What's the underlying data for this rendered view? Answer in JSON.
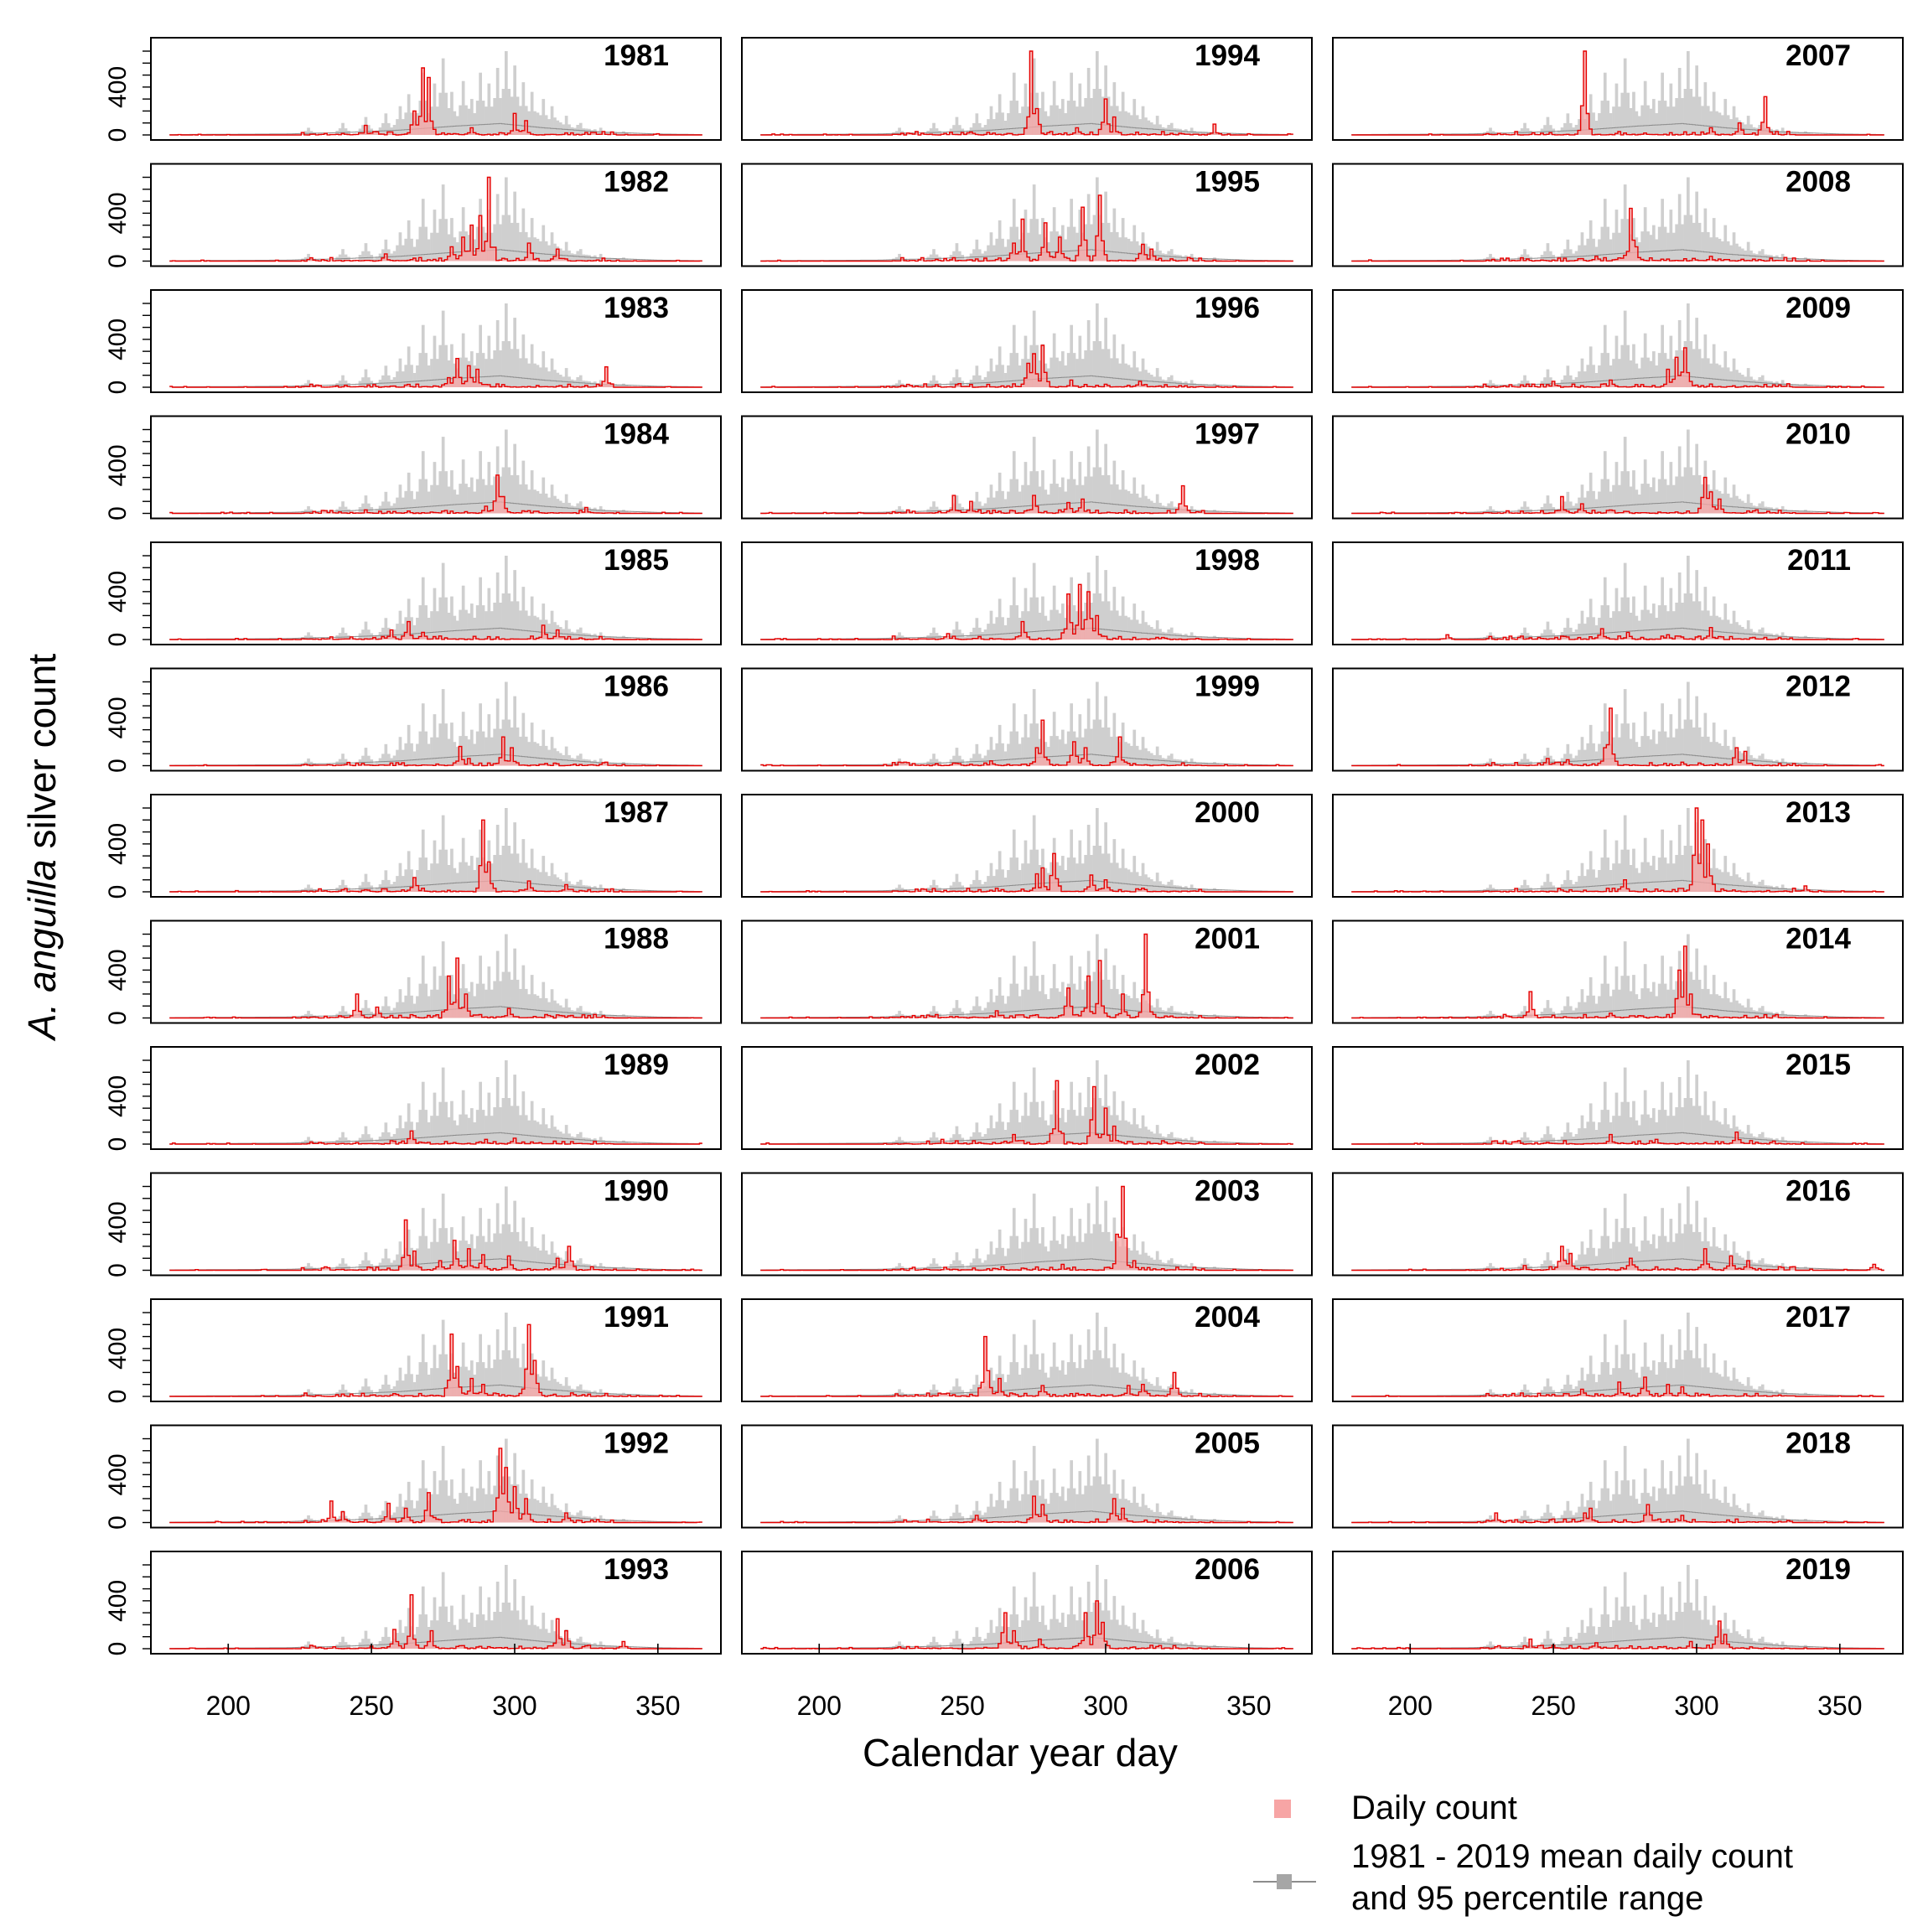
{
  "chart_data": {
    "type": "bar",
    "title": "",
    "xlabel": "Calendar year day",
    "ylabel_italic": "A. anguilla",
    "ylabel_rest": " silver count",
    "xlim": [
      173,
      372
    ],
    "ylim": [
      0,
      700
    ],
    "xticks": [
      200,
      250,
      300,
      350
    ],
    "yticks": [
      0,
      400
    ],
    "years": [
      [
        "1981",
        "1994",
        "2007"
      ],
      [
        "1982",
        "1995",
        "2008"
      ],
      [
        "1983",
        "1996",
        "2009"
      ],
      [
        "1984",
        "1997",
        "2010"
      ],
      [
        "1985",
        "1998",
        "2011"
      ],
      [
        "1986",
        "1999",
        "2012"
      ],
      [
        "1987",
        "2000",
        "2013"
      ],
      [
        "1988",
        "2001",
        "2014"
      ],
      [
        "1989",
        "2002",
        "2015"
      ],
      [
        "1990",
        "2003",
        "2016"
      ],
      [
        "1991",
        "2004",
        "2017"
      ],
      [
        "1992",
        "2005",
        "2018"
      ],
      [
        "1993",
        "2006",
        "2019"
      ]
    ],
    "reference_percentile_peaks": {
      "day": [
        228,
        240,
        248,
        255,
        260,
        263,
        268,
        272,
        275,
        278,
        282,
        285,
        288,
        291,
        294,
        297,
        300,
        303,
        306,
        310,
        313,
        318,
        323,
        330,
        338
      ],
      "upper": [
        60,
        100,
        150,
        180,
        240,
        340,
        520,
        430,
        640,
        360,
        450,
        300,
        520,
        430,
        560,
        700,
        580,
        440,
        360,
        300,
        240,
        160,
        100,
        60,
        30
      ]
    },
    "reference_mean": {
      "day": [
        180,
        220,
        240,
        260,
        280,
        295,
        310,
        330,
        350,
        365
      ],
      "value": [
        3,
        8,
        20,
        40,
        75,
        95,
        60,
        25,
        8,
        3
      ]
    },
    "daily_count_peaks": {
      "1981": [
        [
          268,
          560
        ],
        [
          270,
          480
        ],
        [
          265,
          200
        ],
        [
          300,
          180
        ],
        [
          304,
          120
        ],
        [
          248,
          80
        ],
        [
          285,
          60
        ]
      ],
      "1982": [
        [
          291,
          700
        ],
        [
          288,
          380
        ],
        [
          285,
          300
        ],
        [
          282,
          200
        ],
        [
          278,
          120
        ],
        [
          305,
          150
        ],
        [
          315,
          100
        ],
        [
          255,
          60
        ]
      ],
      "1983": [
        [
          280,
          240
        ],
        [
          284,
          180
        ],
        [
          287,
          150
        ],
        [
          332,
          170
        ],
        [
          277,
          80
        ]
      ],
      "1984": [
        [
          294,
          320
        ],
        [
          296,
          140
        ],
        [
          290,
          60
        ],
        [
          325,
          50
        ]
      ],
      "1985": [
        [
          263,
          150
        ],
        [
          257,
          80
        ],
        [
          268,
          60
        ],
        [
          310,
          120
        ],
        [
          315,
          80
        ]
      ],
      "1986": [
        [
          281,
          160
        ],
        [
          296,
          240
        ],
        [
          299,
          150
        ],
        [
          284,
          60
        ]
      ],
      "1987": [
        [
          289,
          600
        ],
        [
          291,
          250
        ],
        [
          265,
          120
        ],
        [
          305,
          90
        ],
        [
          318,
          60
        ]
      ],
      "1988": [
        [
          280,
          500
        ],
        [
          277,
          350
        ],
        [
          283,
          200
        ],
        [
          245,
          200
        ],
        [
          252,
          90
        ],
        [
          298,
          80
        ]
      ],
      "1989": [
        [
          264,
          110
        ],
        [
          290,
          40
        ],
        [
          300,
          50
        ]
      ],
      "1990": [
        [
          262,
          420
        ],
        [
          265,
          160
        ],
        [
          279,
          250
        ],
        [
          284,
          180
        ],
        [
          289,
          130
        ],
        [
          298,
          120
        ],
        [
          319,
          200
        ],
        [
          315,
          100
        ],
        [
          274,
          80
        ]
      ],
      "1991": [
        [
          278,
          520
        ],
        [
          280,
          250
        ],
        [
          285,
          150
        ],
        [
          289,
          100
        ],
        [
          305,
          600
        ],
        [
          307,
          300
        ]
      ],
      "1992": [
        [
          295,
          620
        ],
        [
          297,
          460
        ],
        [
          300,
          300
        ],
        [
          304,
          200
        ],
        [
          236,
          180
        ],
        [
          270,
          250
        ],
        [
          256,
          160
        ],
        [
          262,
          120
        ],
        [
          240,
          90
        ],
        [
          318,
          80
        ]
      ],
      "1993": [
        [
          264,
          450
        ],
        [
          258,
          160
        ],
        [
          271,
          150
        ],
        [
          315,
          250
        ],
        [
          318,
          150
        ],
        [
          338,
          60
        ]
      ],
      "1994": [
        [
          274,
          700
        ],
        [
          276,
          220
        ],
        [
          300,
          300
        ],
        [
          303,
          150
        ],
        [
          338,
          90
        ],
        [
          290,
          60
        ]
      ],
      "1995": [
        [
          298,
          550
        ],
        [
          292,
          450
        ],
        [
          271,
          350
        ],
        [
          279,
          320
        ],
        [
          284,
          200
        ],
        [
          268,
          150
        ],
        [
          313,
          140
        ],
        [
          316,
          100
        ]
      ],
      "1996": [
        [
          278,
          350
        ],
        [
          275,
          280
        ],
        [
          273,
          200
        ],
        [
          288,
          60
        ],
        [
          312,
          50
        ]
      ],
      "1997": [
        [
          327,
          230
        ],
        [
          247,
          150
        ],
        [
          253,
          100
        ],
        [
          275,
          150
        ],
        [
          292,
          120
        ],
        [
          287,
          90
        ]
      ],
      "1998": [
        [
          291,
          460
        ],
        [
          287,
          380
        ],
        [
          294,
          400
        ],
        [
          297,
          200
        ],
        [
          271,
          150
        ],
        [
          245,
          50
        ]
      ],
      "1999": [
        [
          278,
          380
        ],
        [
          276,
          150
        ],
        [
          305,
          240
        ],
        [
          289,
          200
        ],
        [
          293,
          150
        ],
        [
          260,
          40
        ]
      ],
      "2000": [
        [
          282,
          320
        ],
        [
          278,
          200
        ],
        [
          276,
          150
        ],
        [
          295,
          140
        ],
        [
          300,
          100
        ]
      ],
      "2001": [
        [
          314,
          700
        ],
        [
          298,
          480
        ],
        [
          294,
          350
        ],
        [
          287,
          250
        ],
        [
          306,
          200
        ],
        [
          262,
          60
        ]
      ],
      "2002": [
        [
          283,
          530
        ],
        [
          296,
          480
        ],
        [
          300,
          300
        ],
        [
          303,
          150
        ],
        [
          268,
          80
        ],
        [
          243,
          40
        ]
      ],
      "2003": [
        [
          306,
          700
        ],
        [
          304,
          300
        ],
        [
          310,
          80
        ],
        [
          285,
          50
        ]
      ],
      "2004": [
        [
          258,
          500
        ],
        [
          263,
          150
        ],
        [
          278,
          90
        ],
        [
          308,
          90
        ],
        [
          324,
          200
        ],
        [
          313,
          100
        ]
      ],
      "2005": [
        [
          275,
          220
        ],
        [
          278,
          150
        ],
        [
          303,
          200
        ],
        [
          306,
          120
        ],
        [
          255,
          60
        ]
      ],
      "2006": [
        [
          297,
          400
        ],
        [
          293,
          300
        ],
        [
          299,
          220
        ],
        [
          265,
          300
        ],
        [
          268,
          150
        ],
        [
          277,
          80
        ]
      ],
      "2007": [
        [
          261,
          700
        ],
        [
          324,
          320
        ],
        [
          315,
          100
        ],
        [
          305,
          60
        ]
      ],
      "2008": [
        [
          277,
          440
        ],
        [
          279,
          120
        ],
        [
          265,
          40
        ],
        [
          305,
          40
        ]
      ],
      "2009": [
        [
          296,
          330
        ],
        [
          293,
          250
        ],
        [
          290,
          150
        ],
        [
          270,
          60
        ],
        [
          250,
          50
        ]
      ],
      "2010": [
        [
          303,
          300
        ],
        [
          305,
          180
        ],
        [
          308,
          120
        ],
        [
          253,
          140
        ],
        [
          260,
          80
        ]
      ],
      "2011": [
        [
          305,
          100
        ],
        [
          267,
          90
        ],
        [
          276,
          60
        ],
        [
          213,
          40
        ],
        [
          290,
          40
        ]
      ],
      "2012": [
        [
          270,
          480
        ],
        [
          268,
          150
        ],
        [
          314,
          150
        ],
        [
          317,
          120
        ],
        [
          248,
          60
        ],
        [
          255,
          50
        ]
      ],
      "2013": [
        [
          300,
          700
        ],
        [
          302,
          600
        ],
        [
          304,
          400
        ],
        [
          275,
          100
        ],
        [
          338,
          50
        ]
      ],
      "2014": [
        [
          296,
          600
        ],
        [
          294,
          400
        ],
        [
          298,
          200
        ],
        [
          242,
          220
        ],
        [
          270,
          40
        ]
      ],
      "2015": [
        [
          314,
          100
        ],
        [
          270,
          80
        ],
        [
          286,
          40
        ]
      ],
      "2016": [
        [
          253,
          200
        ],
        [
          256,
          140
        ],
        [
          277,
          100
        ],
        [
          303,
          180
        ],
        [
          312,
          120
        ],
        [
          318,
          80
        ],
        [
          362,
          50
        ],
        [
          240,
          40
        ]
      ],
      "2017": [
        [
          282,
          160
        ],
        [
          273,
          120
        ],
        [
          290,
          100
        ],
        [
          260,
          60
        ],
        [
          295,
          80
        ]
      ],
      "2018": [
        [
          283,
          150
        ],
        [
          263,
          120
        ],
        [
          261,
          80
        ],
        [
          230,
          80
        ],
        [
          295,
          60
        ]
      ],
      "2019": [
        [
          308,
          230
        ],
        [
          310,
          120
        ],
        [
          242,
          80
        ],
        [
          298,
          60
        ],
        [
          265,
          50
        ]
      ]
    },
    "legend": {
      "placement": "bottom-right",
      "daily": "Daily count",
      "reference_line1": "1981 - 2019 mean daily count",
      "reference_line2": "and 95 percentile range"
    },
    "colors": {
      "daily_fill": "#f7a5a5",
      "daily_line": "#e60000",
      "reference_fill": "#cfcfcf",
      "reference_line": "#8c8c8c",
      "axis": "#000000"
    }
  }
}
